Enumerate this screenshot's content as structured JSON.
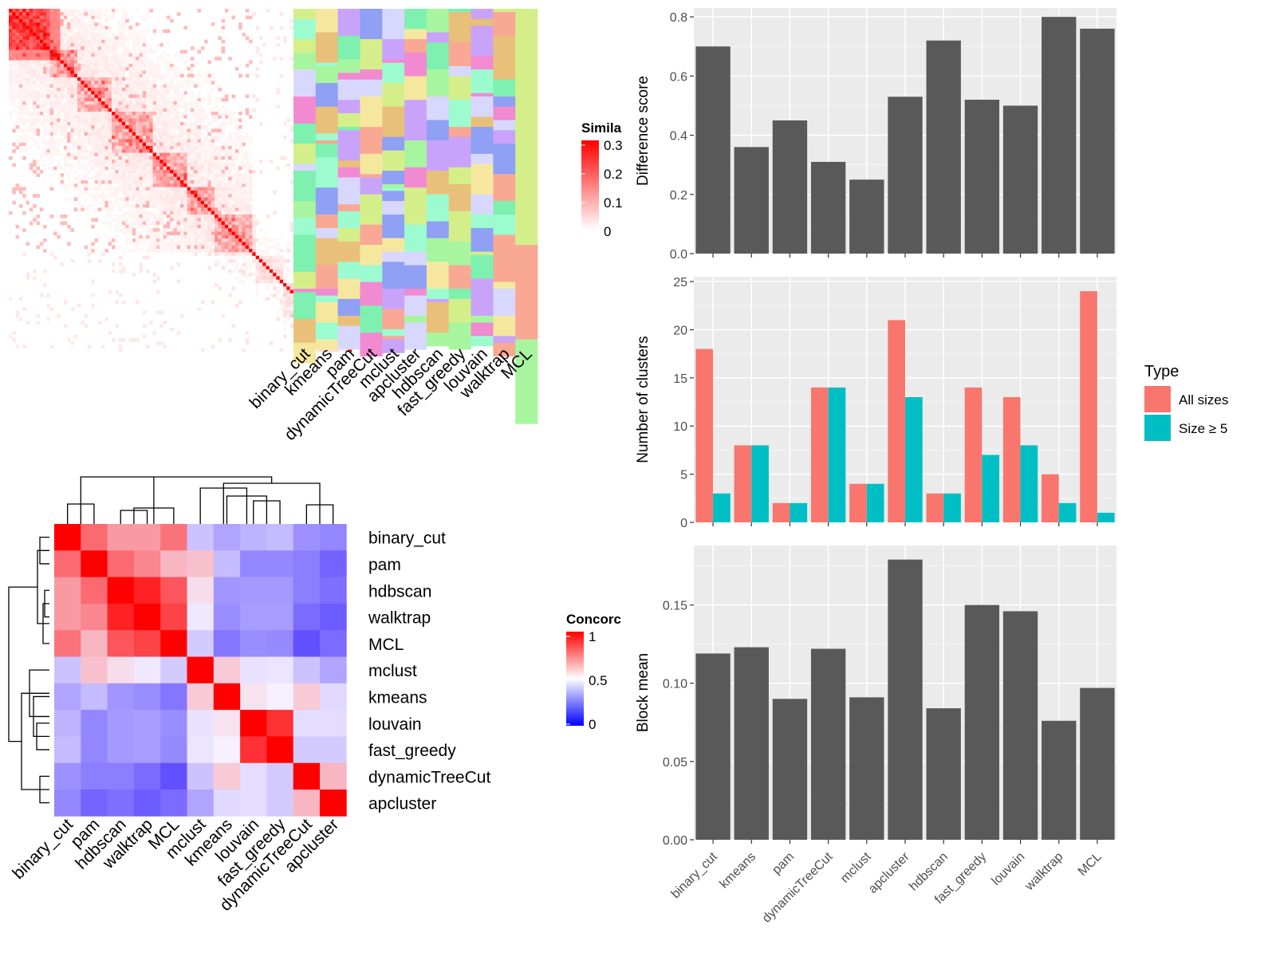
{
  "similarity_heatmap": {
    "legend_title": "Simila",
    "legend_ticks": [
      "0.3",
      "0.2",
      "0.1",
      "0"
    ],
    "method_labels": [
      "binary_cut",
      "kmeans",
      "pam",
      "dynamicTreeCut",
      "mclust",
      "apcluster",
      "hdbscan",
      "fast_greedy",
      "louvain",
      "walktrap",
      "MCL"
    ]
  },
  "concordance_heatmap": {
    "legend_title": "Concorc",
    "legend_ticks": [
      "1",
      "0.5",
      "0"
    ],
    "methods": [
      "binary_cut",
      "pam",
      "hdbscan",
      "walktrap",
      "MCL",
      "mclust",
      "kmeans",
      "louvain",
      "fast_greedy",
      "dynamicTreeCut",
      "apcluster"
    ],
    "matrix": [
      [
        1.0,
        0.78,
        0.68,
        0.68,
        0.76,
        0.38,
        0.3,
        0.34,
        0.36,
        0.25,
        0.22
      ],
      [
        0.78,
        1.0,
        0.78,
        0.72,
        0.62,
        0.6,
        0.36,
        0.22,
        0.22,
        0.2,
        0.13
      ],
      [
        0.68,
        0.78,
        1.0,
        0.93,
        0.82,
        0.54,
        0.26,
        0.27,
        0.27,
        0.2,
        0.16
      ],
      [
        0.68,
        0.72,
        0.93,
        1.0,
        0.86,
        0.48,
        0.24,
        0.28,
        0.28,
        0.15,
        0.11
      ],
      [
        0.76,
        0.62,
        0.82,
        0.86,
        1.0,
        0.4,
        0.18,
        0.24,
        0.23,
        0.08,
        0.15
      ],
      [
        0.38,
        0.6,
        0.54,
        0.48,
        0.4,
        1.0,
        0.58,
        0.46,
        0.47,
        0.38,
        0.3
      ],
      [
        0.3,
        0.36,
        0.26,
        0.24,
        0.18,
        0.58,
        1.0,
        0.53,
        0.5,
        0.58,
        0.44
      ],
      [
        0.34,
        0.22,
        0.27,
        0.28,
        0.24,
        0.46,
        0.53,
        1.0,
        0.9,
        0.45,
        0.45
      ],
      [
        0.36,
        0.22,
        0.27,
        0.28,
        0.23,
        0.47,
        0.5,
        0.9,
        1.0,
        0.4,
        0.4
      ],
      [
        0.25,
        0.2,
        0.2,
        0.15,
        0.08,
        0.38,
        0.58,
        0.45,
        0.4,
        1.0,
        0.62
      ],
      [
        0.22,
        0.13,
        0.16,
        0.11,
        0.15,
        0.3,
        0.44,
        0.45,
        0.4,
        0.62,
        1.0
      ]
    ]
  },
  "chart_data": [
    {
      "type": "bar",
      "categories": [
        "binary_cut",
        "kmeans",
        "pam",
        "dynamicTreeCut",
        "mclust",
        "apcluster",
        "hdbscan",
        "fast_greedy",
        "louvain",
        "walktrap",
        "MCL"
      ],
      "values": [
        0.7,
        0.36,
        0.45,
        0.31,
        0.25,
        0.53,
        0.72,
        0.52,
        0.5,
        0.8,
        0.76
      ],
      "ylabel": "Difference score",
      "ylim": [
        0,
        0.83
      ],
      "yticks": [
        "0.0",
        "0.2",
        "0.4",
        "0.6",
        "0.8"
      ],
      "bar_color": "#595959",
      "grid": true
    },
    {
      "type": "bar",
      "categories": [
        "binary_cut",
        "kmeans",
        "pam",
        "dynamicTreeCut",
        "mclust",
        "apcluster",
        "hdbscan",
        "fast_greedy",
        "louvain",
        "walktrap",
        "MCL"
      ],
      "series": [
        {
          "name": "All sizes",
          "color": "#F8766D",
          "values": [
            18,
            8,
            2,
            14,
            4,
            21,
            3,
            14,
            13,
            5,
            24
          ]
        },
        {
          "name": "Size ≥ 5",
          "color": "#00BFC4",
          "values": [
            3,
            8,
            2,
            14,
            4,
            13,
            3,
            7,
            8,
            2,
            1
          ]
        }
      ],
      "ylabel": "Number of clusters",
      "ylim": [
        0,
        25.5
      ],
      "yticks": [
        "0",
        "5",
        "10",
        "15",
        "20",
        "25"
      ],
      "legend_title": "Type",
      "legend_position": "right",
      "grid": true
    },
    {
      "type": "bar",
      "categories": [
        "binary_cut",
        "kmeans",
        "pam",
        "dynamicTreeCut",
        "mclust",
        "apcluster",
        "hdbscan",
        "fast_greedy",
        "louvain",
        "walktrap",
        "MCL"
      ],
      "values": [
        0.119,
        0.123,
        0.09,
        0.122,
        0.091,
        0.179,
        0.084,
        0.15,
        0.146,
        0.076,
        0.097
      ],
      "ylabel": "Block mean",
      "ylim": [
        0,
        0.188
      ],
      "yticks": [
        "0.00",
        "0.05",
        "0.10",
        "0.15"
      ],
      "bar_color": "#595959",
      "grid": true
    }
  ]
}
